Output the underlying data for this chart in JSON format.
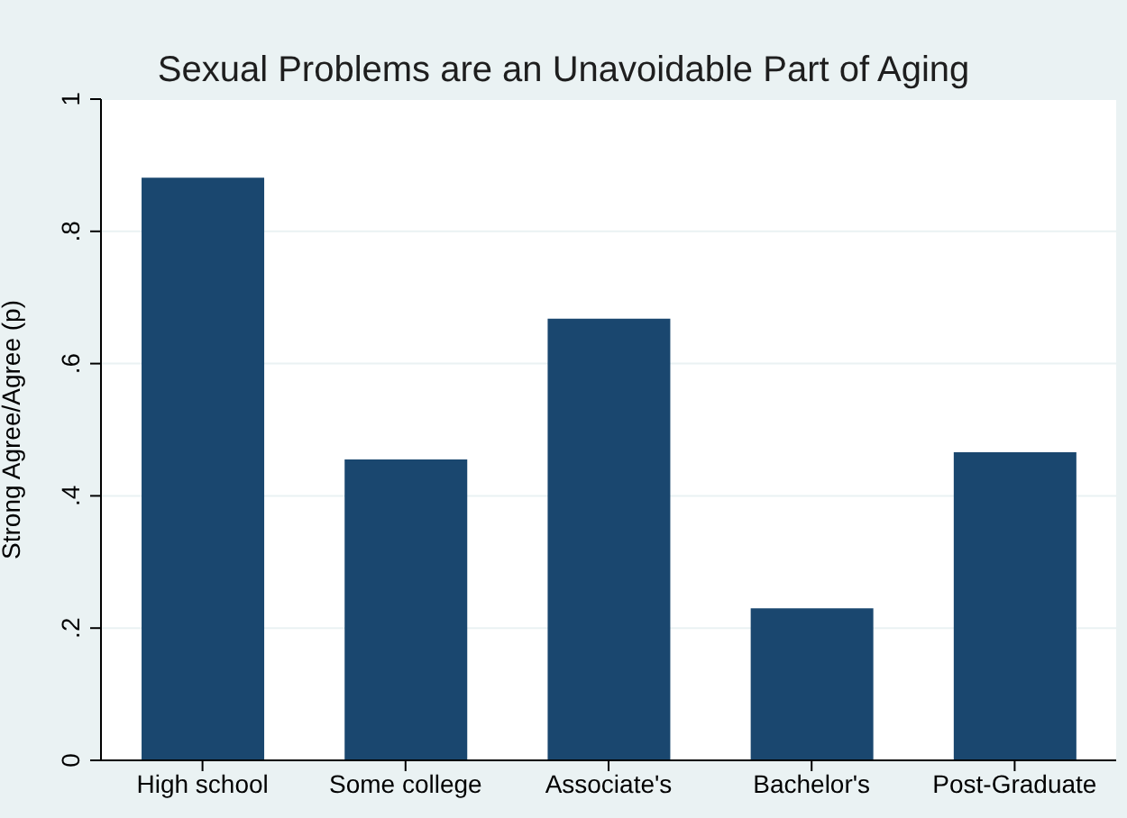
{
  "chart_data": {
    "type": "bar",
    "title": "Sexual Problems are an Unavoidable Part of Aging",
    "ylabel": "Strong Agree/Agree (p)",
    "categories": [
      "High school",
      "Some college",
      "Associate's",
      "Bachelor's",
      "Post-Graduate"
    ],
    "values": [
      0.881,
      0.455,
      0.668,
      0.23,
      0.466
    ],
    "color": "#1a476f",
    "ylim": [
      0,
      1
    ],
    "yticks": [
      {
        "value": 0,
        "label": "0"
      },
      {
        "value": 0.2,
        "label": ".2"
      },
      {
        "value": 0.4,
        "label": ".4"
      },
      {
        "value": 0.6,
        "label": ".6"
      },
      {
        "value": 0.8,
        "label": ".8"
      },
      {
        "value": 1,
        "label": "1"
      }
    ],
    "grid": "y"
  }
}
